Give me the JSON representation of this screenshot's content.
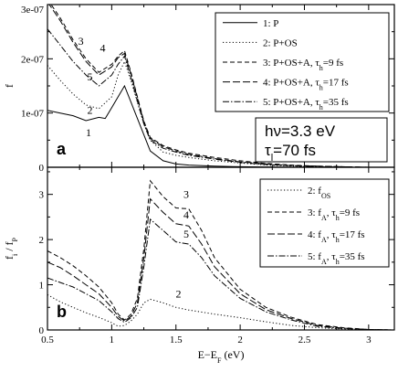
{
  "chart_data": [
    {
      "type": "line",
      "panel_label": "a",
      "ylabel": "f",
      "xlim": [
        0.5,
        3.2
      ],
      "ylim": [
        0,
        3e-07
      ],
      "x_ticks": [
        0.5,
        1,
        1.5,
        2,
        2.5,
        3
      ],
      "y_ticks": [
        {
          "value": 0,
          "label": "0"
        },
        {
          "value": 1e-07,
          "label": "1e-07"
        },
        {
          "value": 2e-07,
          "label": "2e-07"
        },
        {
          "value": 3e-07,
          "label": "3e-07"
        }
      ],
      "legend_position": "top-right",
      "info_box": {
        "line1": "hν=3.3 eV",
        "line2": "τ",
        "line2_sub": "l",
        "line2_rest": "=70 fs"
      },
      "series": [
        {
          "name": "1: P",
          "legend": {
            "main": "1: P"
          },
          "label": "1",
          "dash": "",
          "x": [
            0.5,
            0.6,
            0.7,
            0.8,
            0.9,
            0.95,
            1.0,
            1.05,
            1.1,
            1.15,
            1.2,
            1.25,
            1.3,
            1.4,
            1.5,
            1.6,
            1.8,
            2.0,
            2.2,
            2.4,
            2.6,
            2.8,
            3.0,
            3.2
          ],
          "y": [
            1.05e-07,
            1e-07,
            9.5e-08,
            8.6e-08,
            9.2e-08,
            9e-08,
            1.1e-07,
            1.3e-07,
            1.5e-07,
            1.2e-07,
            9e-08,
            6e-08,
            3e-08,
            1.2e-08,
            6e-09,
            4e-09,
            2e-09,
            1e-09,
            5e-10,
            0,
            0,
            0,
            0,
            0
          ]
        },
        {
          "name": "2: P+OS",
          "legend": {
            "main": "2: P+OS"
          },
          "label": "2",
          "dash": "1.2,2.4",
          "x": [
            0.5,
            0.6,
            0.7,
            0.8,
            0.9,
            1.0,
            1.05,
            1.1,
            1.15,
            1.2,
            1.25,
            1.3,
            1.4,
            1.5,
            1.6,
            1.8,
            2.0,
            2.2,
            2.4,
            2.6,
            2.8,
            3.0,
            3.2
          ],
          "y": [
            1.88e-07,
            1.6e-07,
            1.35e-07,
            1.15e-07,
            1.08e-07,
            1.3e-07,
            1.7e-07,
            1.95e-07,
            1.6e-07,
            1.2e-07,
            8e-08,
            5e-08,
            2.8e-08,
            2.2e-08,
            1.8e-08,
            1.2e-08,
            8e-09,
            4e-09,
            2e-09,
            1e-09,
            0,
            0,
            0
          ]
        },
        {
          "name": "3: P+OS+A, τh=9 fs",
          "legend": {
            "main": "3: P+OS+A, τ",
            "sub": "h",
            "rest": "=9 fs"
          },
          "label": "3",
          "dash": "5,3",
          "x": [
            0.5,
            0.6,
            0.7,
            0.8,
            0.9,
            1.0,
            1.05,
            1.1,
            1.15,
            1.2,
            1.25,
            1.3,
            1.4,
            1.5,
            1.6,
            1.8,
            2.0,
            2.2,
            2.4,
            2.6,
            2.8,
            3.0,
            3.2
          ],
          "y": [
            3.1e-07,
            2.75e-07,
            2.35e-07,
            2e-07,
            1.75e-07,
            1.9e-07,
            2.05e-07,
            2.15e-07,
            1.75e-07,
            1.3e-07,
            8.5e-08,
            5.5e-08,
            4e-08,
            3.2e-08,
            2.6e-08,
            1.8e-08,
            1.2e-08,
            7e-09,
            4e-09,
            2e-09,
            1e-09,
            0,
            0
          ]
        },
        {
          "name": "4: P+OS+A, τh=17 fs",
          "legend": {
            "main": "4: P+OS+A, τ",
            "sub": "h",
            "rest": "=17 fs"
          },
          "label": "4",
          "dash": "8,3",
          "x": [
            0.5,
            0.6,
            0.7,
            0.8,
            0.9,
            1.0,
            1.05,
            1.1,
            1.15,
            1.2,
            1.25,
            1.3,
            1.4,
            1.5,
            1.6,
            1.8,
            2.0,
            2.2,
            2.4,
            2.6,
            2.8,
            3.0,
            3.2
          ],
          "y": [
            3.05e-07,
            2.7e-07,
            2.3e-07,
            1.95e-07,
            1.7e-07,
            1.85e-07,
            2.02e-07,
            2.1e-07,
            1.72e-07,
            1.28e-07,
            8.3e-08,
            5.3e-08,
            3.8e-08,
            3e-08,
            2.4e-08,
            1.6e-08,
            1e-08,
            6e-09,
            3e-09,
            2e-09,
            1e-09,
            0,
            0
          ]
        },
        {
          "name": "5: P+OS+A, τh=35 fs",
          "legend": {
            "main": "5: P+OS+A, τ",
            "sub": "h",
            "rest": "=35 fs"
          },
          "label": "5",
          "dash": "7,2,1.5,2",
          "x": [
            0.5,
            0.6,
            0.7,
            0.8,
            0.9,
            1.0,
            1.05,
            1.1,
            1.15,
            1.2,
            1.25,
            1.3,
            1.4,
            1.5,
            1.6,
            1.8,
            2.0,
            2.2,
            2.4,
            2.6,
            2.8,
            3.0,
            3.2
          ],
          "y": [
            2.55e-07,
            2.25e-07,
            1.95e-07,
            1.7e-07,
            1.5e-07,
            1.7e-07,
            1.9e-07,
            2.05e-07,
            1.65e-07,
            1.22e-07,
            8e-08,
            5e-08,
            3.5e-08,
            2.8e-08,
            2.2e-08,
            1.5e-08,
            9e-09,
            5e-09,
            3e-09,
            1e-09,
            0,
            0,
            0
          ]
        }
      ],
      "curve_labels": [
        {
          "text": "1",
          "x": 0.82,
          "y": 6.4e-08
        },
        {
          "text": "2",
          "x": 0.83,
          "y": 1.05e-07
        },
        {
          "text": "3",
          "x": 0.76,
          "y": 2.33e-07
        },
        {
          "text": "4",
          "x": 0.93,
          "y": 2.2e-07
        },
        {
          "text": "5",
          "x": 0.83,
          "y": 1.67e-07
        }
      ]
    },
    {
      "type": "line",
      "panel_label": "b",
      "ylabel": "f_i / f_P",
      "xlabel": "E−E_F (eV)",
      "xlim": [
        0.5,
        3.2
      ],
      "ylim": [
        0,
        3.6
      ],
      "x_ticks": [
        0.5,
        1,
        1.5,
        2,
        2.5,
        3
      ],
      "y_ticks": [
        {
          "value": 0,
          "label": "0"
        },
        {
          "value": 1,
          "label": "1"
        },
        {
          "value": 2,
          "label": "2"
        },
        {
          "value": 3,
          "label": "3"
        }
      ],
      "legend_position": "top-right",
      "series": [
        {
          "name": "2: fOS",
          "legend": {
            "main": "2: f",
            "sub": "OS",
            "rest": ""
          },
          "label": "2",
          "dash": "1.2,2.4",
          "x": [
            0.5,
            0.6,
            0.7,
            0.8,
            0.9,
            1.0,
            1.05,
            1.1,
            1.15,
            1.2,
            1.25,
            1.3,
            1.4,
            1.5,
            1.6,
            1.8,
            2.0,
            2.2,
            2.4,
            2.6,
            2.8,
            3.0,
            3.2
          ],
          "y": [
            0.78,
            0.62,
            0.5,
            0.38,
            0.28,
            0.16,
            0.08,
            0.1,
            0.2,
            0.35,
            0.6,
            0.68,
            0.6,
            0.5,
            0.44,
            0.35,
            0.27,
            0.18,
            0.1,
            0.05,
            0.02,
            0,
            0
          ]
        },
        {
          "name": "3: fA, τh=9 fs",
          "legend": {
            "main": "3: f",
            "sub": "A",
            "rest": ", τ",
            "sub2": "h",
            "rest2": "=9 fs"
          },
          "label": "3",
          "dash": "5,3",
          "x": [
            0.5,
            0.6,
            0.7,
            0.8,
            0.9,
            1.0,
            1.05,
            1.1,
            1.15,
            1.2,
            1.25,
            1.3,
            1.4,
            1.5,
            1.6,
            1.7,
            1.8,
            2.0,
            2.2,
            2.4,
            2.6,
            2.8,
            3.0,
            3.2
          ],
          "y": [
            1.75,
            1.6,
            1.42,
            1.2,
            0.95,
            0.6,
            0.35,
            0.22,
            0.35,
            0.7,
            1.8,
            3.3,
            2.95,
            2.7,
            2.68,
            2.2,
            1.6,
            0.9,
            0.5,
            0.28,
            0.12,
            0.05,
            0.01,
            0
          ]
        },
        {
          "name": "4: fA, τh=17 fs",
          "legend": {
            "main": "4: f",
            "sub": "A",
            "rest": ", τ",
            "sub2": "h",
            "rest2": "=17 fs"
          },
          "label": "4",
          "dash": "8,3",
          "x": [
            0.5,
            0.6,
            0.7,
            0.8,
            0.9,
            1.0,
            1.05,
            1.1,
            1.15,
            1.2,
            1.25,
            1.3,
            1.4,
            1.5,
            1.6,
            1.7,
            1.8,
            2.0,
            2.2,
            2.4,
            2.6,
            2.8,
            3.0,
            3.2
          ],
          "y": [
            1.5,
            1.38,
            1.2,
            1.0,
            0.8,
            0.5,
            0.3,
            0.2,
            0.3,
            0.6,
            1.6,
            2.9,
            2.6,
            2.35,
            2.3,
            1.9,
            1.4,
            0.8,
            0.45,
            0.25,
            0.1,
            0.04,
            0.01,
            0
          ]
        },
        {
          "name": "5: fA, τh=35 fs",
          "legend": {
            "main": "5: f",
            "sub": "A",
            "rest": ", τ",
            "sub2": "h",
            "rest2": "=35 fs"
          },
          "label": "5",
          "dash": "7,2,1.5,2",
          "x": [
            0.5,
            0.6,
            0.7,
            0.8,
            0.9,
            1.0,
            1.05,
            1.1,
            1.15,
            1.2,
            1.25,
            1.3,
            1.4,
            1.5,
            1.6,
            1.7,
            1.8,
            2.0,
            2.2,
            2.4,
            2.6,
            2.8,
            3.0,
            3.2
          ],
          "y": [
            1.15,
            1.05,
            0.95,
            0.8,
            0.65,
            0.4,
            0.25,
            0.17,
            0.27,
            0.5,
            1.4,
            2.45,
            2.2,
            1.95,
            1.9,
            1.6,
            1.2,
            0.7,
            0.4,
            0.22,
            0.08,
            0.03,
            0.01,
            0
          ]
        }
      ],
      "curve_labels": [
        {
          "text": "2",
          "x": 1.52,
          "y": 0.8
        },
        {
          "text": "3",
          "x": 1.58,
          "y": 3.0
        },
        {
          "text": "4",
          "x": 1.58,
          "y": 2.55
        },
        {
          "text": "5",
          "x": 1.58,
          "y": 2.12
        }
      ]
    }
  ]
}
